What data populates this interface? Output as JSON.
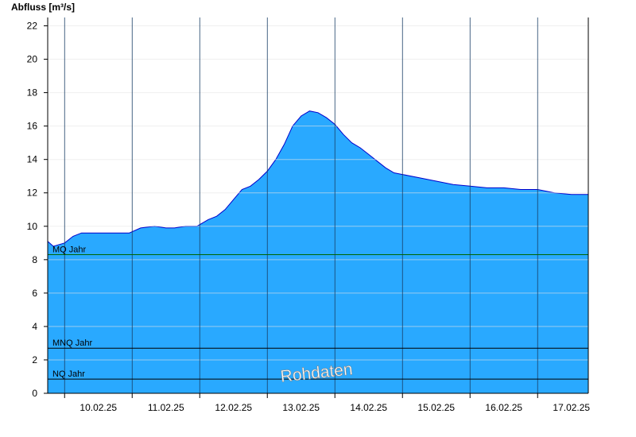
{
  "chart_data": {
    "type": "area",
    "ylabel": "Abfluss [m³/s]",
    "ylim": [
      0,
      22.5
    ],
    "xlim": [
      "09.02.25 18:00",
      "17.02.25 18:00"
    ],
    "yticks": [
      0,
      2,
      4,
      6,
      8,
      10,
      12,
      14,
      16,
      18,
      20,
      22
    ],
    "day_ticks": [
      "10.02.25",
      "11.02.25",
      "12.02.25",
      "13.02.25",
      "14.02.25",
      "15.02.25",
      "16.02.25",
      "17.02.25"
    ],
    "fill_color": "#29a9ff",
    "line_color": "#0000cc",
    "grid": true,
    "series": [
      {
        "x": [
          "09.02.25 18:00",
          "09.02.25 20:00",
          "10.02.25 00:00",
          "10.02.25 03:00",
          "10.02.25 06:00",
          "10.02.25 12:00",
          "10.02.25 18:00",
          "10.02.25 23:00",
          "11.02.25 03:00",
          "11.02.25 08:00",
          "11.02.25 12:00",
          "11.02.25 15:00",
          "11.02.25 19:00",
          "11.02.25 23:00",
          "12.02.25 03:00",
          "12.02.25 06:00",
          "12.02.25 09:00",
          "12.02.25 12:00",
          "12.02.25 15:00",
          "12.02.25 18:00",
          "12.02.25 21:00",
          "13.02.25 00:00",
          "13.02.25 03:00",
          "13.02.25 06:00",
          "13.02.25 09:00",
          "13.02.25 12:00",
          "13.02.25 15:00",
          "13.02.25 18:00",
          "13.02.25 21:00",
          "14.02.25 00:00",
          "14.02.25 03:00",
          "14.02.25 06:00",
          "14.02.25 09:00",
          "14.02.25 12:00",
          "14.02.25 15:00",
          "14.02.25 18:00",
          "14.02.25 21:00",
          "15.02.25 00:00",
          "15.02.25 06:00",
          "15.02.25 12:00",
          "15.02.25 18:00",
          "16.02.25 00:00",
          "16.02.25 06:00",
          "16.02.25 12:00",
          "16.02.25 18:00",
          "17.02.25 00:00",
          "17.02.25 06:00",
          "17.02.25 12:00",
          "17.02.25 18:00"
        ],
        "y": [
          9.1,
          8.8,
          9.0,
          9.4,
          9.6,
          9.6,
          9.6,
          9.6,
          9.9,
          10.0,
          9.9,
          9.9,
          10.0,
          10.0,
          10.4,
          10.6,
          11.0,
          11.6,
          12.2,
          12.4,
          12.8,
          13.3,
          14.0,
          14.9,
          16.0,
          16.6,
          16.9,
          16.8,
          16.5,
          16.1,
          15.5,
          15.0,
          14.7,
          14.3,
          13.9,
          13.5,
          13.2,
          13.1,
          12.9,
          12.7,
          12.5,
          12.4,
          12.3,
          12.3,
          12.2,
          12.2,
          12.0,
          11.9,
          11.9
        ]
      }
    ],
    "reference_lines": [
      {
        "label": "MQ Jahr",
        "value": 8.3,
        "color": "#006600"
      },
      {
        "label": "MNQ Jahr",
        "value": 2.7,
        "color": "#000000"
      },
      {
        "label": "NQ Jahr",
        "value": 0.85,
        "color": "#000000"
      }
    ],
    "watermark": "Rohdaten"
  }
}
